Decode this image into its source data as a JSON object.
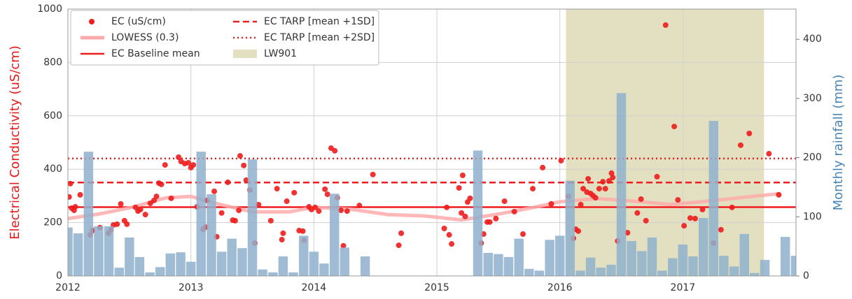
{
  "chart_data": {
    "type": "combo",
    "ylabel": "Electrical Conductivity (uS/cm)",
    "ylabel_color": "#e8191a",
    "y2label": "Monthly rainfall (mm)",
    "y2label_color": "#4a86b8",
    "xlim": [
      2012,
      2017.92
    ],
    "xticks": [
      2012,
      2013,
      2014,
      2015,
      2016,
      2017
    ],
    "ylim": [
      0,
      1000
    ],
    "yticks": [
      0,
      200,
      400,
      600,
      800,
      1000
    ],
    "y2lim": [
      0,
      451
    ],
    "y2ticks": [
      0,
      100,
      200,
      300,
      400
    ],
    "grid": true,
    "legend": "upper left",
    "series": [
      {
        "type": "scatter",
        "name": "EC (uS/cm)",
        "color": "#ee1c1c",
        "x": [
          2012.01,
          2012.02,
          2012.03,
          2012.05,
          2012.06,
          2012.1,
          2012.18,
          2012.2,
          2012.26,
          2012.33,
          2012.35,
          2012.37,
          2012.4,
          2012.43,
          2012.46,
          2012.48,
          2012.55,
          2012.57,
          2012.59,
          2012.63,
          2012.67,
          2012.7,
          2012.72,
          2012.74,
          2012.76,
          2012.79,
          2012.84,
          2012.9,
          2012.92,
          2012.95,
          2012.98,
          2013.0,
          2013.02,
          2013.05,
          2013.1,
          2013.12,
          2013.13,
          2013.19,
          2013.21,
          2013.25,
          2013.3,
          2013.34,
          2013.36,
          2013.39,
          2013.4,
          2013.43,
          2013.45,
          2013.48,
          2013.52,
          2013.55,
          2013.65,
          2013.7,
          2013.74,
          2013.75,
          2013.78,
          2013.84,
          2013.88,
          2013.91,
          2013.92,
          2013.96,
          2013.98,
          2014.01,
          2014.04,
          2014.09,
          2014.11,
          2014.14,
          2014.17,
          2014.19,
          2014.22,
          2014.24,
          2014.27,
          2014.37,
          2014.48,
          2014.69,
          2014.71,
          2015.06,
          2015.08,
          2015.1,
          2015.12,
          2015.18,
          2015.2,
          2015.21,
          2015.23,
          2015.25,
          2015.27,
          2015.36,
          2015.38,
          2015.41,
          2015.43,
          2015.48,
          2015.55,
          2015.63,
          2015.7,
          2015.78,
          2015.86,
          2015.93,
          2016.01,
          2016.07,
          2016.11,
          2016.13,
          2016.15,
          2016.17,
          2016.19,
          2016.22,
          2016.23,
          2016.25,
          2016.27,
          2016.29,
          2016.32,
          2016.35,
          2016.37,
          2016.4,
          2016.42,
          2016.43,
          2016.47,
          2016.55,
          2016.63,
          2016.66,
          2016.7,
          2016.79,
          2016.86,
          2016.93,
          2016.96,
          2017.01,
          2017.06,
          2017.1,
          2017.16,
          2017.25,
          2017.31,
          2017.4,
          2017.47,
          2017.54,
          2017.7,
          2017.78
        ],
        "values": [
          296,
          346,
          254,
          246,
          259,
          304,
          154,
          170,
          181,
          160,
          173,
          191,
          194,
          270,
          207,
          194,
          257,
          243,
          249,
          230,
          272,
          283,
          298,
          348,
          343,
          416,
          291,
          445,
          429,
          421,
          424,
          406,
          416,
          259,
          175,
          183,
          283,
          317,
          147,
          236,
          351,
          209,
          207,
          246,
          450,
          414,
          359,
          322,
          123,
          267,
          207,
          327,
          136,
          160,
          280,
          312,
          170,
          168,
          134,
          259,
          249,
          257,
          243,
          325,
          306,
          479,
          469,
          293,
          246,
          113,
          243,
          264,
          380,
          115,
          160,
          178,
          257,
          154,
          120,
          330,
          236,
          377,
          223,
          277,
          291,
          123,
          157,
          202,
          202,
          215,
          280,
          241,
          157,
          327,
          406,
          270,
          432,
          298,
          141,
          175,
          168,
          267,
          327,
          314,
          364,
          309,
          301,
          293,
          327,
          353,
          327,
          356,
          385,
          369,
          131,
          162,
          236,
          288,
          207,
          372,
          940,
          560,
          285,
          188,
          217,
          215,
          249,
          123,
          173,
          257,
          490,
          534,
          458,
          304
        ]
      },
      {
        "type": "line",
        "name": "LOWESS (0.3)",
        "color": "#ffaaaa",
        "x": [
          2012.0,
          2012.25,
          2012.5,
          2012.8,
          2013.0,
          2013.2,
          2013.5,
          2013.8,
          2014.0,
          2014.3,
          2014.6,
          2014.9,
          2015.2,
          2015.5,
          2015.8,
          2016.0,
          2016.3,
          2016.6,
          2016.9,
          2017.2,
          2017.5,
          2017.78
        ],
        "values": [
          215,
          232,
          255,
          293,
          298,
          272,
          240,
          240,
          257,
          250,
          230,
          225,
          210,
          232,
          258,
          278,
          290,
          280,
          268,
          280,
          295,
          308
        ]
      },
      {
        "type": "hline",
        "name": "EC Baseline mean",
        "color": "#ee1c1c",
        "linestyle": "solid",
        "value": 258
      },
      {
        "type": "hline",
        "name": "EC TARP [mean +1SD]",
        "color": "#ee1c1c",
        "linestyle": "dashed",
        "value": 350
      },
      {
        "type": "hline",
        "name": "EC TARP [mean +2SD]",
        "color": "#ee1c1c",
        "linestyle": "dotted",
        "value": 440
      },
      {
        "type": "span",
        "name": "LW901",
        "color": "#d9d6ad",
        "x": [
          2016.05,
          2017.66
        ]
      },
      {
        "type": "bar",
        "axis": "y2",
        "color": "#8fb0cc",
        "x": [
          2012.0,
          2012.083,
          2012.167,
          2012.25,
          2012.333,
          2012.417,
          2012.5,
          2012.583,
          2012.667,
          2012.75,
          2012.833,
          2012.917,
          2013.0,
          2013.083,
          2013.167,
          2013.25,
          2013.333,
          2013.417,
          2013.5,
          2013.583,
          2013.667,
          2013.75,
          2013.833,
          2013.917,
          2014.0,
          2014.083,
          2014.167,
          2014.25,
          2014.333,
          2014.417,
          2014.5,
          2014.583,
          2014.667,
          2014.75,
          2014.833,
          2014.917,
          2015.0,
          2015.083,
          2015.167,
          2015.25,
          2015.333,
          2015.417,
          2015.5,
          2015.583,
          2015.667,
          2015.75,
          2015.833,
          2015.917,
          2016.0,
          2016.083,
          2016.167,
          2016.25,
          2016.333,
          2016.417,
          2016.5,
          2016.583,
          2016.667,
          2016.75,
          2016.833,
          2016.917,
          2017.0,
          2017.083,
          2017.167,
          2017.25,
          2017.333,
          2017.417,
          2017.5,
          2017.583,
          2017.667,
          2017.75,
          2017.833,
          2017.917
        ],
        "values": [
          82,
          72,
          210,
          84,
          84,
          14,
          65,
          32,
          6,
          15,
          38,
          40,
          24,
          210,
          138,
          41,
          63,
          47,
          197,
          11,
          6,
          33,
          6,
          68,
          41,
          21,
          139,
          48,
          0,
          33,
          0,
          0,
          0,
          0,
          0,
          0,
          0,
          0,
          0,
          0,
          212,
          39,
          37,
          32,
          63,
          12,
          9,
          61,
          68,
          161,
          9,
          31,
          14,
          19,
          309,
          59,
          42,
          65,
          9,
          30,
          53,
          33,
          98,
          262,
          34,
          16,
          71,
          5,
          27,
          0,
          66,
          34
        ]
      }
    ]
  }
}
